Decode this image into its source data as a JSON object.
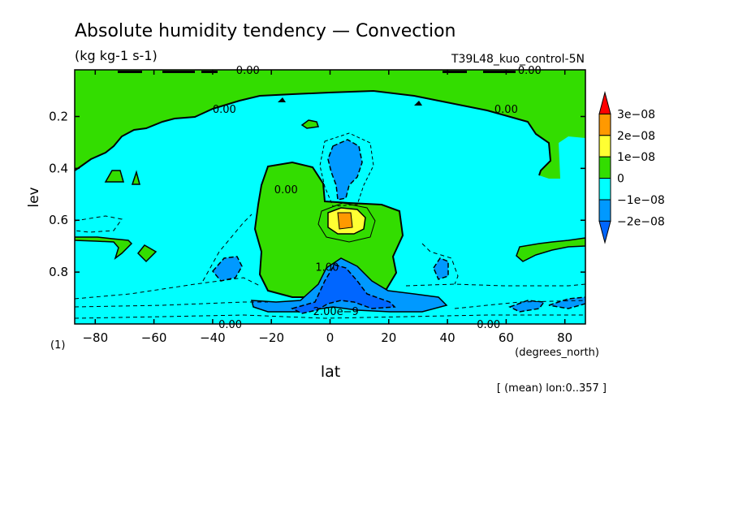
{
  "chart_data": {
    "type": "contour",
    "title": "Absolute humidity tendency — Convection",
    "units": "(kg kg-1 s-1)",
    "run_label": "T39L48_kuo_control-5N",
    "xlabel": "lat",
    "x_units": "(degrees_north)",
    "ylabel": "lev",
    "y_units": "(1)",
    "footer": "[ (mean) lon:0..357 ]",
    "xlim": [
      -87,
      87
    ],
    "ylim": [
      1.0,
      0.02
    ],
    "x_ticks": [
      -80,
      -60,
      -40,
      -20,
      0,
      20,
      40,
      60,
      80
    ],
    "x_tick_labels": [
      "−80",
      "−60",
      "−40",
      "−20",
      "0",
      "20",
      "40",
      "60",
      "80"
    ],
    "y_ticks": [
      0.2,
      0.4,
      0.6,
      0.8
    ],
    "y_tick_labels": [
      "0.2",
      "0.4",
      "0.6",
      "0.8"
    ],
    "colorbar": {
      "labels": [
        "3e−08",
        "2e−08",
        "1e−08",
        "0",
        "−1e−08",
        "−2e−08"
      ],
      "colors": [
        "#ff0000",
        "#ff9900",
        "#ffff33",
        "#33dd00",
        "#00ffff",
        "#0099ff",
        "#0066ff"
      ]
    },
    "contour_labels": [
      {
        "text": "0.00",
        "lat": -28,
        "lev": 0.02
      },
      {
        "text": "0.00",
        "lat": 68,
        "lev": 0.02
      },
      {
        "text": "0.00",
        "lat": -36,
        "lev": 0.17
      },
      {
        "text": "0.00",
        "lat": 60,
        "lev": 0.17
      },
      {
        "text": "0.00",
        "lat": -15,
        "lev": 0.48
      },
      {
        "text": "1.00",
        "lat": -1,
        "lev": 0.78
      },
      {
        "text": "2.00e−9",
        "lat": 2,
        "lev": 0.95
      },
      {
        "text": "0.00",
        "lat": -34,
        "lev": 1.0
      },
      {
        "text": "0.00",
        "lat": 54,
        "lev": 1.0
      }
    ]
  }
}
